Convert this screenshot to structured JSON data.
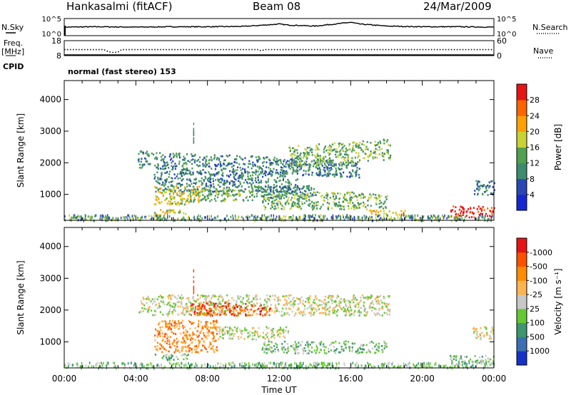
{
  "header": {
    "station": "Hankasalmi (fitACF)",
    "beam": "Beam 08",
    "date": "24/Mar/2009"
  },
  "side_labels": {
    "nsky": "N.Sky",
    "freq_line1": "Freq.",
    "freq_line2": "[MHz]",
    "cpid": "CPID",
    "nsearch": "N.Search",
    "nave": "Nave"
  },
  "cpid_text": "normal (fast stereo) 153",
  "chart_data": [
    {
      "type": "line",
      "panel": "noise",
      "left_axis_ticks": [
        "10^5",
        "10^0"
      ],
      "right_axis_ticks": [
        "10^5",
        "10^0"
      ],
      "series": [
        {
          "name": "N.Sky",
          "x": [
            0,
            2,
            4,
            6,
            8,
            10,
            11.5,
            12,
            12.5,
            14,
            15.5,
            16,
            16.5,
            18,
            20,
            22,
            24
          ],
          "y": [
            2.5,
            2.6,
            2.5,
            2.6,
            2.6,
            2.7,
            3.2,
            3.4,
            3.1,
            2.8,
            3.6,
            3.9,
            3.4,
            2.8,
            2.6,
            2.6,
            2.5
          ]
        }
      ]
    },
    {
      "type": "line",
      "panel": "frequency",
      "left_axis_ticks": [
        "18",
        "8"
      ],
      "right_axis_ticks": [
        "60",
        "0"
      ],
      "series": [
        {
          "name": "Freq.",
          "x": [
            0,
            2.2,
            2.4,
            2.6,
            2.8,
            3.0,
            3.2,
            10.8,
            11.0,
            11.2,
            24
          ],
          "y": [
            12.0,
            12.0,
            11.0,
            10.3,
            10.1,
            10.4,
            12.0,
            12.0,
            11.3,
            12.0,
            12.0
          ]
        },
        {
          "name": "Nave",
          "x": [
            0,
            24
          ],
          "y": [
            0,
            0
          ]
        }
      ]
    },
    {
      "type": "heatmap",
      "panel": "power",
      "ylabel": "Slant Range [km]",
      "yticks": [
        1000,
        2000,
        3000,
        4000
      ],
      "ylim": [
        180,
        4600
      ],
      "xlim": [
        0,
        24
      ],
      "colorbar_label": "Power [dB]",
      "colorbar_ticks": [
        "4",
        "8",
        "12",
        "16",
        "20",
        "24",
        "28"
      ],
      "colorbar_colors": [
        "#1428d2",
        "#2846b4",
        "#3c8c6e",
        "#50a050",
        "#c8d232",
        "#ffa000",
        "#ff6400",
        "#e61414"
      ],
      "regions": [
        {
          "t0": 4.1,
          "t1": 16.5,
          "r0": 1850,
          "r1": 2400,
          "level": 2,
          "slope": -25
        },
        {
          "t0": 12.5,
          "t1": 18.2,
          "r0": 1900,
          "r1": 2550,
          "level": 3,
          "slope": 40
        },
        {
          "t0": 5.0,
          "t1": 13.0,
          "r0": 1100,
          "r1": 1750,
          "level": 2,
          "slope": 0
        },
        {
          "t0": 5.0,
          "t1": 7.5,
          "r0": 700,
          "r1": 1300,
          "level": 4,
          "slope": 0
        },
        {
          "t0": 7.0,
          "t1": 10.5,
          "r0": 800,
          "r1": 1200,
          "level": 3,
          "slope": 0
        },
        {
          "t0": 10.5,
          "t1": 14.0,
          "r0": 900,
          "r1": 1300,
          "level": 2,
          "slope": 0
        },
        {
          "t0": 11.0,
          "t1": 18.0,
          "r0": 550,
          "r1": 1100,
          "level": 3,
          "slope": 0
        },
        {
          "t0": 5.0,
          "t1": 6.8,
          "r0": 350,
          "r1": 550,
          "level": 4,
          "slope": 0
        },
        {
          "t0": 21.5,
          "t1": 24.0,
          "r0": 300,
          "r1": 650,
          "level": 7,
          "slope": 0
        },
        {
          "t0": 22.8,
          "t1": 24.0,
          "r0": 1000,
          "r1": 1450,
          "level": 2,
          "slope": 0
        },
        {
          "t0": 17.0,
          "t1": 19.0,
          "r0": 350,
          "r1": 520,
          "level": 5,
          "slope": 0
        }
      ],
      "xticks": [
        "00:00",
        "04:00",
        "08:00",
        "12:00",
        "16:00",
        "20:00",
        "00:00"
      ]
    },
    {
      "type": "heatmap",
      "panel": "velocity",
      "ylabel": "Slant Range [km]",
      "yticks": [
        1000,
        2000,
        3000,
        4000
      ],
      "ylim": [
        180,
        4600
      ],
      "xlim": [
        0,
        24
      ],
      "xlabel": "Time UT",
      "colorbar_label": "Velocity [m s⁻¹]",
      "colorbar_ticks": [
        "1000",
        "500",
        "100",
        "25",
        "-25",
        "-100",
        "-500",
        "-1000"
      ],
      "colorbar_colors": [
        "#1432c8",
        "#3c6eb4",
        "#3c966e",
        "#64c832",
        "#c8c8c8",
        "#ffb450",
        "#ff8c00",
        "#ff5000",
        "#e61414"
      ],
      "regions": [
        {
          "t0": 4.1,
          "t1": 18.2,
          "r0": 1850,
          "r1": 2500,
          "level": 4,
          "slope": 0
        },
        {
          "t0": 7.0,
          "t1": 11.5,
          "r0": 1850,
          "r1": 2250,
          "level": 7,
          "slope": 0
        },
        {
          "t0": 5.0,
          "t1": 8.5,
          "r0": 700,
          "r1": 1700,
          "level": 6,
          "slope": 0
        },
        {
          "t0": 8.5,
          "t1": 12.5,
          "r0": 1100,
          "r1": 1500,
          "level": 4,
          "slope": 0
        },
        {
          "t0": 11.0,
          "t1": 18.0,
          "r0": 650,
          "r1": 1050,
          "level": 3,
          "slope": 0
        },
        {
          "t0": 5.0,
          "t1": 7.0,
          "r0": 450,
          "r1": 650,
          "level": 3,
          "slope": 0
        },
        {
          "t0": 21.5,
          "t1": 24.0,
          "r0": 350,
          "r1": 600,
          "level": 3,
          "slope": 0
        },
        {
          "t0": 22.8,
          "t1": 24.0,
          "r0": 1100,
          "r1": 1500,
          "level": 4,
          "slope": 0
        }
      ],
      "xticks": [
        "00:00",
        "04:00",
        "08:00",
        "12:00",
        "16:00",
        "20:00",
        "00:00"
      ]
    }
  ]
}
